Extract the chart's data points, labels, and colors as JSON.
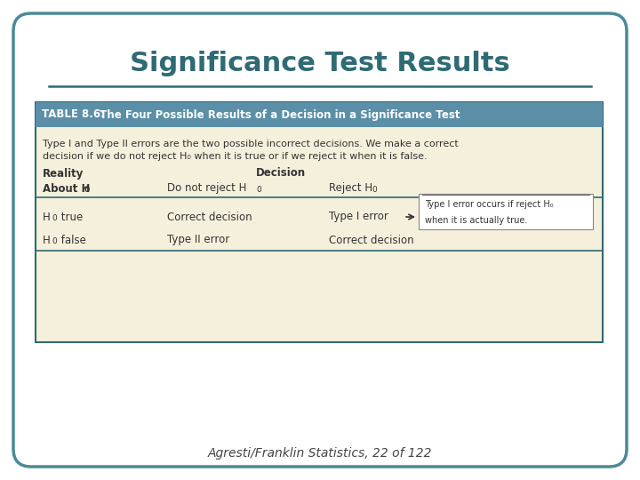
{
  "title": "Significance Test Results",
  "title_color": "#2E6B75",
  "title_fontsize": 22,
  "footer": "Agresti/Franklin Statistics, 22 of 122",
  "footer_fontsize": 10,
  "bg_color": "#FFFFFF",
  "outer_border_color": "#4A8A96",
  "table_header_bg": "#5B8FA8",
  "table_body_bg": "#F5F0DC",
  "table_header_label": "TABLE 8.6:",
  "table_header_desc": "  The Four Possible Results of a Decision in a Significance Test",
  "desc_text_line1": "Type I and Type II errors are the two possible incorrect decisions. We make a correct",
  "desc_text_line2": "decision if we do not reject H₀ when it is true or if we reject it when it is false.",
  "col_headers_left": "Reality",
  "col_headers_decision": "Decision",
  "divider_color": "#2E6B75",
  "text_color": "#333333",
  "annotation_line1": "Type I error occurs if reject H₀",
  "annotation_line2": "when it is actually true."
}
